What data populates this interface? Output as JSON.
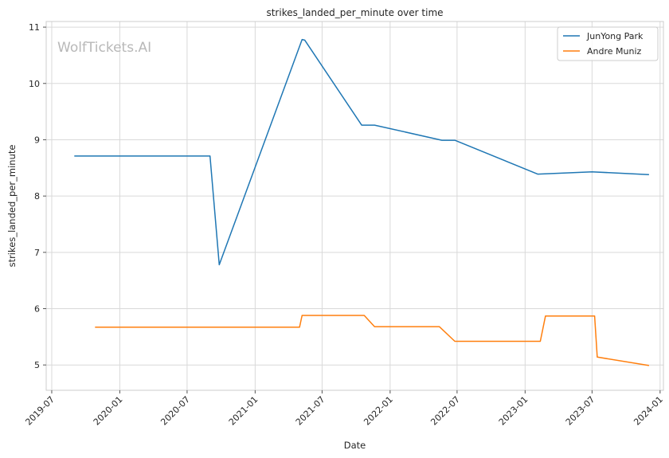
{
  "chart_data": {
    "type": "line",
    "title": "strikes_landed_per_minute over time",
    "xlabel": "Date",
    "ylabel": "strikes_landed_per_minute",
    "watermark": "WolfTickets.AI",
    "x_ticks": [
      "2019-07",
      "2020-01",
      "2020-07",
      "2021-01",
      "2021-07",
      "2022-01",
      "2022-07",
      "2023-01",
      "2023-07",
      "2024-01"
    ],
    "y_ticks": [
      5,
      6,
      7,
      8,
      9,
      10,
      11
    ],
    "xlim": [
      "2019-06-16",
      "2024-01-10"
    ],
    "ylim": [
      4.55,
      11.1
    ],
    "grid": true,
    "legend": "top-right",
    "series": [
      {
        "name": "JunYong Park",
        "color": "#1f77b4",
        "points": [
          {
            "x": "2019-08-31",
            "y": 8.71
          },
          {
            "x": "2020-09-01",
            "y": 8.71
          },
          {
            "x": "2020-09-26",
            "y": 6.78
          },
          {
            "x": "2021-05-08",
            "y": 10.78
          },
          {
            "x": "2021-05-15",
            "y": 10.77
          },
          {
            "x": "2021-10-16",
            "y": 9.26
          },
          {
            "x": "2021-11-20",
            "y": 9.26
          },
          {
            "x": "2022-05-21",
            "y": 8.99
          },
          {
            "x": "2022-06-25",
            "y": 8.99
          },
          {
            "x": "2023-02-04",
            "y": 8.39
          },
          {
            "x": "2023-07-01",
            "y": 8.43
          },
          {
            "x": "2023-12-02",
            "y": 8.38
          }
        ]
      },
      {
        "name": "Andre Muniz",
        "color": "#ff7f0e",
        "points": [
          {
            "x": "2019-10-26",
            "y": 5.67
          },
          {
            "x": "2021-05-01",
            "y": 5.67
          },
          {
            "x": "2021-05-08",
            "y": 5.88
          },
          {
            "x": "2021-10-23",
            "y": 5.88
          },
          {
            "x": "2021-11-20",
            "y": 5.68
          },
          {
            "x": "2022-05-14",
            "y": 5.68
          },
          {
            "x": "2022-06-25",
            "y": 5.42
          },
          {
            "x": "2023-02-11",
            "y": 5.42
          },
          {
            "x": "2023-02-25",
            "y": 5.87
          },
          {
            "x": "2023-07-08",
            "y": 5.87
          },
          {
            "x": "2023-07-15",
            "y": 5.14
          },
          {
            "x": "2023-12-02",
            "y": 4.99
          }
        ]
      }
    ]
  }
}
